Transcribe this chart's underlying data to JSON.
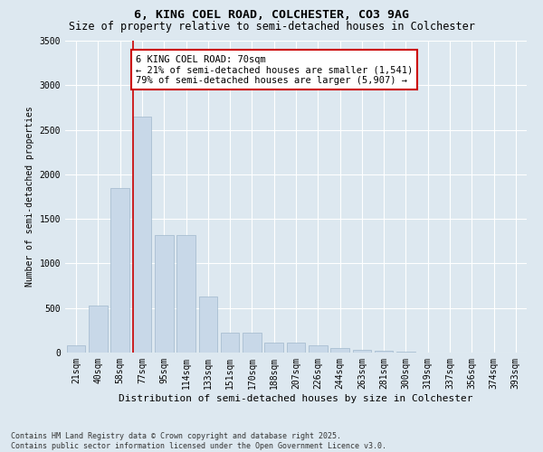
{
  "title1": "6, KING COEL ROAD, COLCHESTER, CO3 9AG",
  "title2": "Size of property relative to semi-detached houses in Colchester",
  "xlabel": "Distribution of semi-detached houses by size in Colchester",
  "ylabel": "Number of semi-detached properties",
  "footnote": "Contains HM Land Registry data © Crown copyright and database right 2025.\nContains public sector information licensed under the Open Government Licence v3.0.",
  "categories": [
    "21sqm",
    "40sqm",
    "58sqm",
    "77sqm",
    "95sqm",
    "114sqm",
    "133sqm",
    "151sqm",
    "170sqm",
    "188sqm",
    "207sqm",
    "226sqm",
    "244sqm",
    "263sqm",
    "281sqm",
    "300sqm",
    "319sqm",
    "337sqm",
    "356sqm",
    "374sqm",
    "393sqm"
  ],
  "values": [
    80,
    530,
    1850,
    2650,
    1320,
    1320,
    630,
    220,
    220,
    110,
    110,
    80,
    50,
    30,
    20,
    10,
    5,
    3,
    2,
    1,
    1
  ],
  "bar_color": "#c8d8e8",
  "bar_edge_color": "#a0b8cc",
  "vline_index": 3,
  "vline_color": "#cc0000",
  "annotation_text": "6 KING COEL ROAD: 70sqm\n← 21% of semi-detached houses are smaller (1,541)\n79% of semi-detached houses are larger (5,907) →",
  "annotation_box_color": "#ffffff",
  "annotation_box_edge": "#cc0000",
  "ylim": [
    0,
    3500
  ],
  "yticks": [
    0,
    500,
    1000,
    1500,
    2000,
    2500,
    3000,
    3500
  ],
  "bg_color": "#dde8f0",
  "plot_bg_color": "#dde8f0",
  "grid_color": "#ffffff",
  "title1_fontsize": 9.5,
  "title2_fontsize": 8.5,
  "xlabel_fontsize": 8,
  "ylabel_fontsize": 7,
  "tick_fontsize": 7,
  "annotation_fontsize": 7.5
}
